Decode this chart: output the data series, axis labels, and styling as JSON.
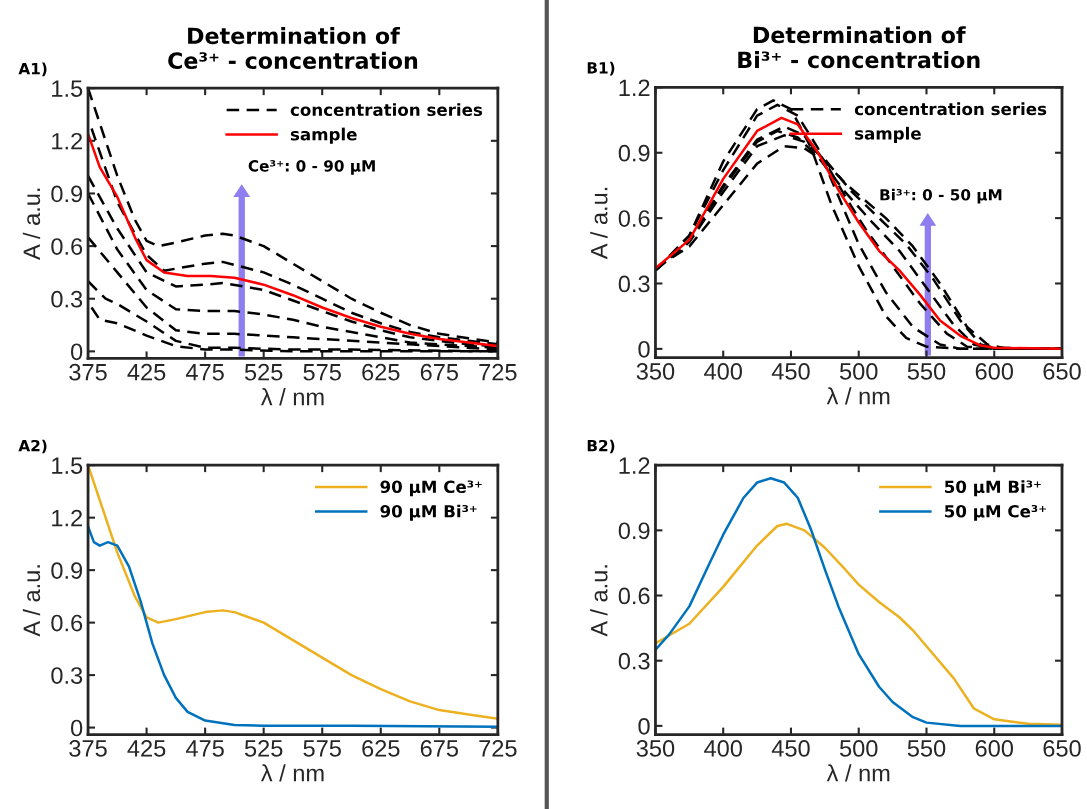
{
  "chart_data": [
    {
      "type": "line",
      "title": "Determination of\nCe³⁺ - concentration",
      "xlabel": "λ / nm",
      "ylabel": "A / a.u.",
      "xlim": [
        375,
        725
      ],
      "ylim": [
        -0.04,
        1.5
      ],
      "xticks": [
        375,
        425,
        475,
        525,
        575,
        625,
        675,
        725
      ],
      "yticks": [
        0,
        0.3,
        0.6,
        0.9,
        1.2,
        1.5
      ],
      "legend": "top right",
      "marker": "none",
      "annotations": [
        "A1)",
        "Ce³⁺: 0 - 90 µM"
      ],
      "series": [
        {
          "name": "concentration series",
          "color": "#000000",
          "line_style": "dashed",
          "x": [
            378,
            385,
            400,
            425,
            450,
            475,
            500,
            550,
            600,
            650,
            725
          ],
          "values": [
            0.25,
            0.18,
            0.16,
            0.09,
            0.03,
            0.01,
            0.01,
            0.0,
            0.0,
            0.0,
            0.0
          ]
        },
        {
          "color": "#000000",
          "line_style": "dashed",
          "x": [
            375,
            390,
            400,
            425,
            450,
            475,
            500,
            550,
            600,
            725
          ],
          "values": [
            0.4,
            0.3,
            0.27,
            0.17,
            0.06,
            0.02,
            0.02,
            0.01,
            0.01,
            0.0
          ]
        },
        {
          "color": "#000000",
          "line_style": "dashed",
          "x": [
            375,
            400,
            425,
            450,
            475,
            500,
            525,
            550,
            575,
            600,
            625,
            650,
            675,
            700,
            725
          ],
          "values": [
            0.65,
            0.45,
            0.25,
            0.12,
            0.1,
            0.1,
            0.09,
            0.08,
            0.07,
            0.06,
            0.05,
            0.04,
            0.03,
            0.02,
            0.01
          ]
        },
        {
          "color": "#000000",
          "line_style": "dashed",
          "x": [
            375,
            400,
            425,
            450,
            475,
            500,
            525,
            550,
            575,
            600,
            625,
            650,
            675,
            700,
            725
          ],
          "values": [
            0.9,
            0.58,
            0.35,
            0.24,
            0.23,
            0.23,
            0.21,
            0.18,
            0.14,
            0.11,
            0.08,
            0.05,
            0.04,
            0.03,
            0.02
          ]
        },
        {
          "color": "#000000",
          "line_style": "dashed",
          "x": [
            375,
            400,
            425,
            450,
            475,
            490,
            525,
            550,
            575,
            600,
            625,
            650,
            675,
            700,
            725
          ],
          "values": [
            1.0,
            0.7,
            0.45,
            0.37,
            0.38,
            0.39,
            0.35,
            0.29,
            0.23,
            0.17,
            0.12,
            0.08,
            0.06,
            0.04,
            0.03
          ]
        },
        {
          "color": "#000000",
          "line_style": "dashed",
          "x": [
            378,
            400,
            425,
            440,
            475,
            490,
            525,
            550,
            575,
            600,
            625,
            650,
            675,
            700,
            725
          ],
          "values": [
            1.27,
            0.85,
            0.55,
            0.46,
            0.5,
            0.51,
            0.45,
            0.38,
            0.3,
            0.22,
            0.16,
            0.11,
            0.08,
            0.06,
            0.04
          ]
        },
        {
          "color": "#000000",
          "line_style": "dashed",
          "x": [
            375,
            390,
            400,
            415,
            425,
            435,
            450,
            475,
            490,
            500,
            525,
            550,
            575,
            600,
            625,
            650,
            675,
            700,
            725
          ],
          "values": [
            1.5,
            1.2,
            1.0,
            0.75,
            0.63,
            0.6,
            0.62,
            0.66,
            0.67,
            0.66,
            0.6,
            0.5,
            0.4,
            0.3,
            0.22,
            0.15,
            0.1,
            0.075,
            0.05
          ]
        },
        {
          "name": "sample",
          "color": "#ff0000",
          "line_style": "solid",
          "x": [
            375,
            385,
            400,
            415,
            425,
            440,
            460,
            480,
            500,
            525,
            550,
            575,
            600,
            625,
            650,
            675,
            700,
            725
          ],
          "values": [
            1.24,
            1.05,
            0.88,
            0.65,
            0.52,
            0.45,
            0.43,
            0.43,
            0.42,
            0.38,
            0.32,
            0.25,
            0.19,
            0.14,
            0.1,
            0.07,
            0.05,
            0.03
          ]
        }
      ]
    },
    {
      "type": "line",
      "title": "Determination of\nBi³⁺ - concentration",
      "xlabel": "λ / nm",
      "ylabel": "A / a.u.",
      "xlim": [
        350,
        650
      ],
      "ylim": [
        -0.04,
        1.2
      ],
      "xticks": [
        350,
        400,
        450,
        500,
        550,
        600,
        650
      ],
      "yticks": [
        0,
        0.3,
        0.6,
        0.9,
        1.2
      ],
      "legend": "top right",
      "marker": "none",
      "annotations": [
        "B1)",
        "Bi³⁺: 0 - 50 µM"
      ],
      "series": [
        {
          "name": "concentration series",
          "color": "#000000",
          "line_style": "dashed",
          "x": [
            350,
            375,
            400,
            425,
            437,
            450,
            465,
            480,
            500,
            520,
            535,
            550,
            575,
            600,
            650
          ],
          "values": [
            0.36,
            0.52,
            0.86,
            1.1,
            1.14,
            1.1,
            0.92,
            0.66,
            0.38,
            0.15,
            0.05,
            0.01,
            0.0,
            0.0,
            0.0
          ]
        },
        {
          "color": "#000000",
          "line_style": "dashed",
          "x": [
            350,
            375,
            400,
            425,
            440,
            455,
            470,
            485,
            500,
            520,
            540,
            560,
            575,
            600,
            650
          ],
          "values": [
            0.36,
            0.52,
            0.82,
            1.07,
            1.12,
            1.07,
            0.92,
            0.7,
            0.48,
            0.26,
            0.1,
            0.02,
            0.0,
            0.0,
            0.0
          ]
        },
        {
          "color": "#000000",
          "line_style": "dashed",
          "x": [
            350,
            375,
            400,
            425,
            445,
            460,
            475,
            490,
            505,
            525,
            545,
            565,
            580,
            600,
            650
          ],
          "values": [
            0.36,
            0.5,
            0.75,
            0.96,
            1.02,
            0.98,
            0.86,
            0.7,
            0.55,
            0.38,
            0.21,
            0.07,
            0.01,
            0.0,
            0.0
          ]
        },
        {
          "color": "#000000",
          "line_style": "dashed",
          "x": [
            350,
            375,
            400,
            425,
            440,
            455,
            470,
            490,
            510,
            530,
            550,
            570,
            585,
            600,
            650
          ],
          "values": [
            0.36,
            0.5,
            0.74,
            0.95,
            1.0,
            0.97,
            0.88,
            0.72,
            0.58,
            0.45,
            0.28,
            0.11,
            0.02,
            0.0,
            0.0
          ]
        },
        {
          "color": "#000000",
          "line_style": "dashed",
          "x": [
            350,
            375,
            400,
            425,
            445,
            460,
            475,
            495,
            515,
            535,
            555,
            575,
            590,
            600,
            650
          ],
          "values": [
            0.36,
            0.49,
            0.72,
            0.93,
            0.98,
            0.95,
            0.87,
            0.72,
            0.6,
            0.48,
            0.32,
            0.13,
            0.02,
            0.005,
            0.0
          ]
        },
        {
          "color": "#000000",
          "line_style": "dashed",
          "x": [
            350,
            375,
            400,
            425,
            445,
            460,
            475,
            490,
            505,
            520,
            540,
            560,
            580,
            595,
            610,
            650
          ],
          "values": [
            0.37,
            0.47,
            0.66,
            0.85,
            0.93,
            0.92,
            0.86,
            0.76,
            0.68,
            0.6,
            0.47,
            0.3,
            0.1,
            0.02,
            0.0,
            0.0
          ]
        },
        {
          "name": "sample",
          "color": "#ff0000",
          "line_style": "solid",
          "x": [
            350,
            375,
            400,
            425,
            443,
            455,
            470,
            485,
            500,
            515,
            530,
            545,
            560,
            575,
            590,
            600,
            650
          ],
          "values": [
            0.37,
            0.5,
            0.78,
            1.0,
            1.06,
            1.03,
            0.9,
            0.73,
            0.58,
            0.45,
            0.36,
            0.25,
            0.13,
            0.06,
            0.015,
            0.005,
            0.0
          ]
        }
      ]
    },
    {
      "type": "line",
      "xlabel": "λ / nm",
      "ylabel": "A / a.u.",
      "xlim": [
        375,
        725
      ],
      "ylim": [
        -0.04,
        1.5
      ],
      "xticks": [
        375,
        425,
        475,
        525,
        575,
        625,
        675,
        725
      ],
      "yticks": [
        0,
        0.3,
        0.6,
        0.9,
        1.2,
        1.5
      ],
      "legend": "top right",
      "marker": "none",
      "annotations": [
        "A2)"
      ],
      "series": [
        {
          "name": "90 µM Ce³⁺",
          "color": "#edb120",
          "line_style": "solid",
          "x": [
            375,
            390,
            400,
            415,
            425,
            435,
            450,
            475,
            490,
            500,
            525,
            550,
            575,
            600,
            625,
            650,
            675,
            700,
            725
          ],
          "values": [
            1.5,
            1.2,
            1.0,
            0.75,
            0.63,
            0.6,
            0.62,
            0.66,
            0.67,
            0.66,
            0.6,
            0.5,
            0.4,
            0.3,
            0.22,
            0.15,
            0.1,
            0.075,
            0.05
          ]
        },
        {
          "name": "90 µM Bi³⁺",
          "color": "#0072bd",
          "line_style": "solid",
          "x": [
            375,
            380,
            385,
            392,
            400,
            410,
            420,
            430,
            440,
            450,
            460,
            475,
            500,
            525,
            600,
            725
          ],
          "values": [
            1.15,
            1.06,
            1.04,
            1.06,
            1.04,
            0.92,
            0.72,
            0.48,
            0.3,
            0.17,
            0.09,
            0.04,
            0.015,
            0.01,
            0.01,
            0.005
          ]
        }
      ]
    },
    {
      "type": "line",
      "xlabel": "λ / nm",
      "ylabel": "A / a.u.",
      "xlim": [
        350,
        650
      ],
      "ylim": [
        -0.04,
        1.2
      ],
      "xticks": [
        350,
        400,
        450,
        500,
        550,
        600,
        650
      ],
      "yticks": [
        0,
        0.3,
        0.6,
        0.9,
        1.2
      ],
      "legend": "top right",
      "marker": "none",
      "annotations": [
        "B2)"
      ],
      "series": [
        {
          "name": "50 µM Bi³⁺",
          "color": "#edb120",
          "line_style": "solid",
          "x": [
            350,
            375,
            400,
            425,
            440,
            447,
            460,
            475,
            490,
            500,
            515,
            530,
            540,
            555,
            570,
            585,
            600,
            625,
            650
          ],
          "values": [
            0.38,
            0.47,
            0.64,
            0.83,
            0.92,
            0.93,
            0.9,
            0.82,
            0.72,
            0.65,
            0.57,
            0.5,
            0.44,
            0.33,
            0.22,
            0.08,
            0.03,
            0.01,
            0.005
          ]
        },
        {
          "name": "50 µM Ce³⁺",
          "color": "#0072bd",
          "line_style": "solid",
          "x": [
            350,
            360,
            375,
            390,
            400,
            415,
            425,
            435,
            445,
            455,
            465,
            475,
            485,
            500,
            515,
            525,
            540,
            550,
            575,
            600,
            650
          ],
          "values": [
            0.35,
            0.42,
            0.55,
            0.75,
            0.88,
            1.05,
            1.12,
            1.14,
            1.12,
            1.05,
            0.9,
            0.72,
            0.55,
            0.33,
            0.18,
            0.11,
            0.04,
            0.015,
            0.0,
            0.0,
            0.0
          ]
        }
      ]
    }
  ]
}
